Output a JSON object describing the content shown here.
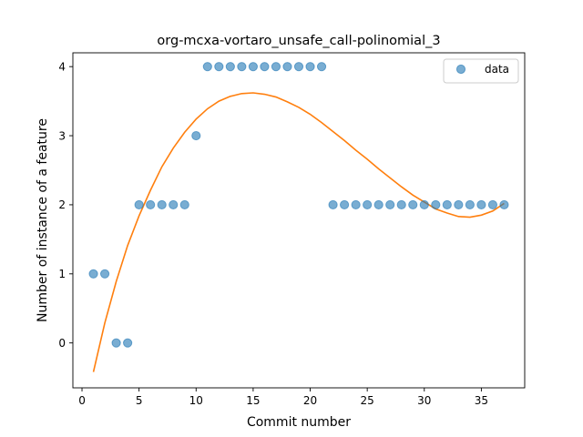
{
  "chart_data": {
    "type": "scatter",
    "title": "org-mcxa-vortaro_unsafe_call-polinomial_3",
    "xlabel": "Commit number",
    "ylabel": "Number of instance of a feature",
    "xlim": [
      -0.8,
      38.8
    ],
    "ylim": [
      -0.65,
      4.2
    ],
    "xticks": [
      0,
      5,
      10,
      15,
      20,
      25,
      30,
      35
    ],
    "yticks": [
      0,
      1,
      2,
      3,
      4
    ],
    "grid": false,
    "legend": {
      "placement": "top-right",
      "entries": [
        "data"
      ]
    },
    "colors": {
      "scatter": "#1f77b4",
      "fit": "#ff7f0e"
    },
    "series": [
      {
        "name": "data",
        "kind": "scatter",
        "x": [
          1,
          2,
          3,
          4,
          5,
          6,
          7,
          8,
          9,
          10,
          11,
          12,
          13,
          14,
          15,
          16,
          17,
          18,
          19,
          20,
          21,
          22,
          23,
          24,
          25,
          26,
          27,
          28,
          29,
          30,
          31,
          32,
          33,
          34,
          35,
          36,
          37
        ],
        "y": [
          1,
          1,
          0,
          0,
          2,
          2,
          2,
          2,
          2,
          3,
          4,
          4,
          4,
          4,
          4,
          4,
          4,
          4,
          4,
          4,
          4,
          2,
          2,
          2,
          2,
          2,
          2,
          2,
          2,
          2,
          2,
          2,
          2,
          2,
          2,
          2,
          2
        ]
      },
      {
        "kind": "line",
        "x": [
          1,
          2,
          3,
          4,
          5,
          6,
          7,
          8,
          9,
          10,
          11,
          12,
          13,
          14,
          15,
          16,
          17,
          18,
          19,
          20,
          21,
          22,
          23,
          24,
          25,
          26,
          27,
          28,
          29,
          30,
          31,
          32,
          33,
          34,
          35,
          36,
          37
        ],
        "y": [
          -0.42,
          0.29,
          0.89,
          1.41,
          1.84,
          2.21,
          2.55,
          2.82,
          3.05,
          3.24,
          3.39,
          3.5,
          3.57,
          3.61,
          3.62,
          3.6,
          3.56,
          3.49,
          3.41,
          3.31,
          3.19,
          3.06,
          2.93,
          2.79,
          2.66,
          2.52,
          2.39,
          2.26,
          2.14,
          2.04,
          1.94,
          1.88,
          1.83,
          1.82,
          1.85,
          1.91,
          2.02
        ]
      }
    ]
  }
}
